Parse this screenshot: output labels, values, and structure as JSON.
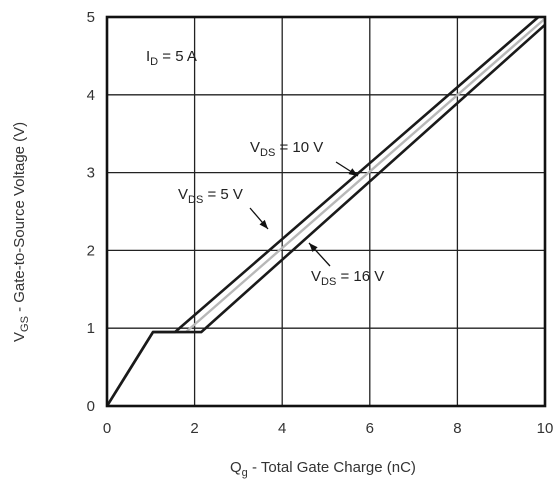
{
  "chart_data": {
    "type": "line",
    "xlabel_main": "Q",
    "xlabel_sub": "g",
    "xlabel_rest": " - Total Gate Charge (nC)",
    "ylabel_main": "V",
    "ylabel_sub": "GS",
    "ylabel_rest": " - Gate-to-Source Voltage (V)",
    "xlim": [
      0,
      10
    ],
    "ylim": [
      0,
      5
    ],
    "x_ticks": [
      "0",
      "2",
      "4",
      "6",
      "8",
      "10"
    ],
    "y_ticks": [
      "0",
      "1",
      "2",
      "3",
      "4",
      "5"
    ],
    "grid": true,
    "condition": {
      "main": "I",
      "sub": "D",
      "rest": " = 5 A"
    },
    "series": [
      {
        "name": "VDS = 5 V",
        "label_main": "V",
        "label_sub": "DS",
        "label_rest": " = 5 V",
        "x": [
          0,
          1.05,
          1.55,
          9.85
        ],
        "y": [
          0,
          0.95,
          0.95,
          5.0
        ]
      },
      {
        "name": "VDS = 10 V",
        "label_main": "V",
        "label_sub": "DS",
        "label_rest": " = 10 V",
        "x": [
          0,
          1.05,
          1.8,
          10.0
        ],
        "y": [
          0,
          0.95,
          0.95,
          4.98
        ]
      },
      {
        "name": "VDS = 16 V",
        "label_main": "V",
        "label_sub": "DS",
        "label_rest": " = 16 V",
        "x": [
          0,
          1.05,
          2.15,
          10.0
        ],
        "y": [
          0,
          0.95,
          0.95,
          4.9
        ]
      }
    ],
    "series_colors": [
      "#1a1a1a",
      "#b8b8b8",
      "#1a1a1a"
    ],
    "grid_color": "#222222"
  }
}
